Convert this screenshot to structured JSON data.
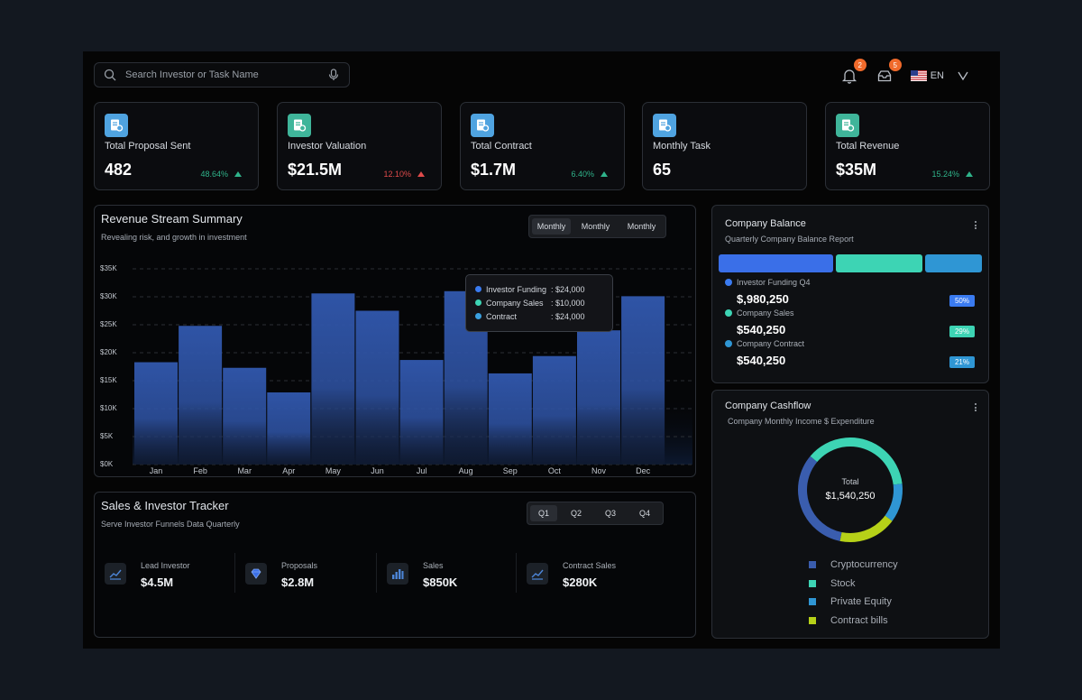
{
  "search": {
    "placeholder": "Search Investor or Task Name"
  },
  "header": {
    "notifications_count": "2",
    "messages_count": "5",
    "language": "EN"
  },
  "stats": [
    {
      "title": "Total Proposal Sent",
      "value": "482",
      "change": "48.64%",
      "trend": "up-green",
      "icon_color": "#4fa3e0"
    },
    {
      "title": "Investor Valuation",
      "value": "$21.5M",
      "change": "12.10%",
      "trend": "up-red",
      "icon_color": "#3fb59a"
    },
    {
      "title": "Total Contract",
      "value": "$1.7M",
      "change": "6.40%",
      "trend": "up-green",
      "icon_color": "#4fa3e0"
    },
    {
      "title": "Monthly Task",
      "value": "65",
      "change": "",
      "trend": "",
      "icon_color": "#4fa3e0"
    },
    {
      "title": "Total Revenue",
      "value": "$35M",
      "change": "15.24%",
      "trend": "up-green",
      "icon_color": "#3fb59a"
    }
  ],
  "revenue": {
    "title": "Revenue Stream Summary",
    "subtitle": "Revealing risk, and growth in investment",
    "tabs": [
      "Monthly",
      "Monthly",
      "Monthly"
    ],
    "tooltip": [
      {
        "label": "Investor Funding",
        "value": ": $24,000",
        "color": "#3a7bf0"
      },
      {
        "label": "Company Sales",
        "value": ": $10,000",
        "color": "#3dd4b4"
      },
      {
        "label": "Contract",
        "value": ": $24,000",
        "color": "#3aa0e0"
      }
    ]
  },
  "chart_data": {
    "type": "bar",
    "categories": [
      "Jan",
      "Feb",
      "Mar",
      "Apr",
      "May",
      "Jun",
      "Jul",
      "Aug",
      "Sep",
      "Oct",
      "Nov",
      "Dec"
    ],
    "values": [
      18300,
      24800,
      17300,
      12900,
      30600,
      27500,
      18700,
      31000,
      16300,
      19400,
      24000,
      30100
    ],
    "yticks": [
      "$0K",
      "$5K",
      "$10K",
      "$15K",
      "$20K",
      "$25K",
      "$30K",
      "$35K"
    ],
    "ylim": [
      0,
      35000
    ],
    "bar_color": "#2f54a6"
  },
  "tracker": {
    "title": "Sales & Investor Tracker",
    "subtitle": "Serve Investor Funnels Data Quarterly",
    "tabs": [
      "Q1",
      "Q2",
      "Q3",
      "Q4"
    ],
    "items": [
      {
        "label": "Lead Investor",
        "value": "$4.5M",
        "icon": "chart-icon"
      },
      {
        "label": "Proposals",
        "value": "$2.8M",
        "icon": "diamond-icon"
      },
      {
        "label": "Sales",
        "value": "$850K",
        "icon": "bar-chart-icon"
      },
      {
        "label": "Contract Sales",
        "value": "$280K",
        "icon": "chart-icon"
      }
    ]
  },
  "balance": {
    "title": "Company Balance",
    "subtitle": "Quarterly Company Balance Report",
    "bar_colors": [
      "#3a6fe8",
      "#3dd4b4",
      "#2f96d4"
    ],
    "items": [
      {
        "label": "Investor Funding Q4",
        "value": "$,980,250",
        "pct": "50%",
        "color": "#3a7bf0"
      },
      {
        "label": "Company Sales",
        "value": "$540,250",
        "pct": "29%",
        "color": "#3dd4b4"
      },
      {
        "label": "Company Contract",
        "value": "$540,250",
        "pct": "21%",
        "color": "#2f96d4"
      }
    ]
  },
  "cashflow": {
    "title": "Company Cashflow",
    "subtitle": "Company Monthly Income $ Expenditure",
    "total_label": "Total",
    "total_value": "$1,540,250",
    "legend": [
      {
        "label": "Cryptocurrency",
        "color": "#3a5dae",
        "share": 0.33
      },
      {
        "label": "Stock",
        "color": "#3dd4b4",
        "share": 0.37
      },
      {
        "label": "Private Equity",
        "color": "#2f96d4",
        "share": 0.12
      },
      {
        "label": "Contract bills",
        "color": "#b6d118",
        "share": 0.18
      }
    ]
  }
}
